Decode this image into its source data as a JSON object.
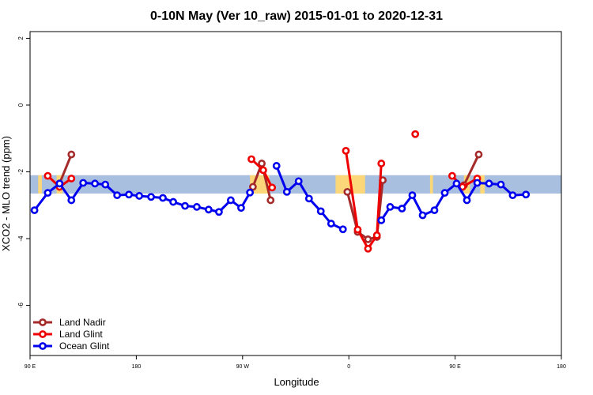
{
  "chart_data": {
    "type": "line",
    "title": "0-10N May (Ver 10_raw)   2015-01-01 to 2020-12-31",
    "xlabel": "Longitude",
    "ylabel": "XCO2 - MLO trend (ppm)",
    "xlim": [
      90,
      450
    ],
    "ylim": [
      -7.5,
      2.2
    ],
    "x_ticks": [
      {
        "value": 90,
        "label": "90 E"
      },
      {
        "value": 162,
        "label": "180"
      },
      {
        "value": 234,
        "label": "90 W"
      },
      {
        "value": 306,
        "label": "0"
      },
      {
        "value": 378,
        "label": "90 E"
      },
      {
        "value": 450,
        "label": "180"
      }
    ],
    "y_ticks": [
      {
        "value": 2,
        "label": "2"
      },
      {
        "value": 0,
        "label": "0"
      },
      {
        "value": -2,
        "label": "-2"
      },
      {
        "value": -4,
        "label": "-4"
      },
      {
        "value": -6,
        "label": "-6"
      }
    ],
    "grid": false,
    "legend_position": "bottom-left",
    "band": {
      "ymin": -2.65,
      "ymax": -2.1,
      "ocean_color": "#a8bfe0",
      "land_color": "#fbd77a"
    },
    "land_segments": [
      [
        95.5,
        98
      ],
      [
        108,
        112
      ],
      [
        239,
        252
      ],
      [
        297,
        317
      ],
      [
        361,
        363
      ],
      [
        384,
        388
      ],
      [
        395,
        398
      ]
    ],
    "series": [
      {
        "name": "Land Nadir",
        "color": "#a52a2a",
        "segments": [
          [
            [
              110,
              -2.35
            ],
            [
              118,
              -1.48
            ]
          ],
          [
            [
              241,
              -2.45
            ],
            [
              247,
              -1.75
            ],
            [
              253,
              -2.85
            ]
          ],
          [
            [
              305,
              -2.6
            ],
            [
              312,
              -3.8
            ],
            [
              319,
              -4.02
            ],
            [
              325,
              -3.95
            ],
            [
              329,
              -2.25
            ]
          ],
          [
            [
              384,
              -2.4
            ],
            [
              394,
              -1.48
            ]
          ]
        ]
      },
      {
        "name": "Land Glint",
        "color": "#ee0000",
        "segments": [
          [
            [
              102,
              -2.12
            ],
            [
              110,
              -2.45
            ],
            [
              118,
              -2.2
            ]
          ],
          [
            [
              240,
              -1.62
            ],
            [
              248,
              -1.95
            ],
            [
              254,
              -2.47
            ]
          ],
          [
            [
              304,
              -1.37
            ],
            [
              312,
              -3.73
            ],
            [
              319,
              -4.3
            ],
            [
              325,
              -3.9
            ],
            [
              328,
              -1.75
            ]
          ],
          [
            [
              351,
              -0.87
            ]
          ],
          [
            [
              376,
              -2.12
            ],
            [
              383,
              -2.45
            ],
            [
              393,
              -2.2
            ]
          ]
        ]
      },
      {
        "name": "Ocean Glint",
        "color": "#0000ee",
        "segments": [
          [
            [
              93,
              -3.15
            ],
            [
              102,
              -2.63
            ],
            [
              110,
              -2.35
            ],
            [
              118,
              -2.85
            ],
            [
              126,
              -2.33
            ],
            [
              134,
              -2.35
            ],
            [
              141,
              -2.38
            ],
            [
              149,
              -2.7
            ],
            [
              157,
              -2.68
            ],
            [
              164,
              -2.72
            ],
            [
              172,
              -2.75
            ],
            [
              180,
              -2.78
            ],
            [
              187,
              -2.9
            ],
            [
              195,
              -3.02
            ],
            [
              203,
              -3.05
            ],
            [
              211,
              -3.13
            ],
            [
              218,
              -3.2
            ],
            [
              226,
              -2.85
            ],
            [
              233,
              -3.08
            ],
            [
              239,
              -2.62
            ]
          ],
          [
            [
              257,
              -1.82
            ],
            [
              264,
              -2.6
            ],
            [
              272,
              -2.28
            ],
            [
              279,
              -2.8
            ],
            [
              287,
              -3.18
            ],
            [
              294,
              -3.55
            ],
            [
              302,
              -3.72
            ]
          ],
          [
            [
              328,
              -3.45
            ],
            [
              334,
              -3.05
            ],
            [
              342,
              -3.1
            ],
            [
              349,
              -2.7
            ],
            [
              356,
              -3.3
            ],
            [
              364,
              -3.15
            ],
            [
              371,
              -2.63
            ],
            [
              379,
              -2.35
            ],
            [
              386,
              -2.85
            ],
            [
              393,
              -2.33
            ],
            [
              401,
              -2.35
            ],
            [
              409,
              -2.38
            ],
            [
              417,
              -2.7
            ],
            [
              426,
              -2.68
            ]
          ]
        ]
      }
    ]
  }
}
